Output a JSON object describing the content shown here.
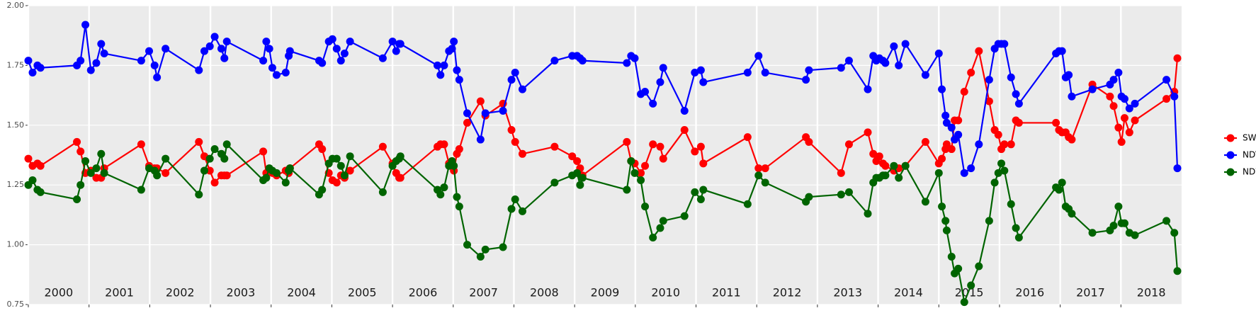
{
  "chart_data": {
    "type": "line",
    "x": [
      2000.0,
      2000.07,
      2000.15,
      2000.2,
      2000.8,
      2000.86,
      2000.94,
      2001.03,
      2001.12,
      2001.2,
      2001.25,
      2001.86,
      2001.99,
      2002.08,
      2002.12,
      2002.26,
      2002.81,
      2002.9,
      2002.99,
      2003.07,
      2003.18,
      2003.23,
      2003.27,
      2003.87,
      2003.92,
      2003.97,
      2004.02,
      2004.09,
      2004.24,
      2004.29,
      2004.31,
      2004.79,
      2004.84,
      2004.95,
      2005.01,
      2005.08,
      2005.15,
      2005.21,
      2005.3,
      2005.84,
      2006.0,
      2006.06,
      2006.11,
      2006.13,
      2006.74,
      2006.79,
      2006.85,
      2006.93,
      2006.98,
      2007.01,
      2007.06,
      2007.1,
      2007.23,
      2007.45,
      2007.53,
      2007.82,
      2007.96,
      2008.02,
      2008.14,
      2008.67,
      2008.96,
      2009.04,
      2009.09,
      2009.13,
      2009.86,
      2009.93,
      2009.99,
      2010.09,
      2010.16,
      2010.29,
      2010.41,
      2010.46,
      2010.81,
      2010.98,
      2011.08,
      2011.12,
      2011.85,
      2012.03,
      2012.14,
      2012.81,
      2012.86,
      2013.39,
      2013.52,
      2013.83,
      2013.92,
      2013.97,
      2014.02,
      2014.08,
      2014.12,
      2014.26,
      2014.34,
      2014.45,
      2014.78,
      2015.0,
      2015.05,
      2015.11,
      2015.13,
      2015.21,
      2015.26,
      2015.32,
      2015.42,
      2015.53,
      2015.66,
      2015.83,
      2015.92,
      2015.98,
      2016.03,
      2016.08,
      2016.19,
      2016.27,
      2016.32,
      2016.93,
      2016.98,
      2017.03,
      2017.09,
      2017.14,
      2017.19,
      2017.53,
      2017.82,
      2017.88,
      2017.96,
      2018.01,
      2018.06,
      2018.14,
      2018.23,
      2018.75,
      2018.88,
      2018.93
    ],
    "series": [
      {
        "name": "SWIR",
        "color": "#ff0000",
        "values": [
          1.36,
          1.33,
          1.34,
          1.33,
          1.43,
          1.39,
          1.3,
          1.31,
          1.28,
          1.28,
          1.32,
          1.42,
          1.33,
          1.32,
          1.32,
          1.3,
          1.43,
          1.37,
          1.31,
          1.26,
          1.29,
          1.29,
          1.29,
          1.39,
          1.3,
          1.31,
          1.3,
          1.29,
          1.31,
          1.3,
          1.32,
          1.42,
          1.4,
          1.3,
          1.27,
          1.26,
          1.29,
          1.28,
          1.31,
          1.41,
          1.34,
          1.3,
          1.28,
          1.28,
          1.41,
          1.42,
          1.42,
          1.34,
          1.35,
          1.31,
          1.38,
          1.4,
          1.51,
          1.6,
          1.54,
          1.59,
          1.48,
          1.43,
          1.38,
          1.41,
          1.37,
          1.35,
          1.32,
          1.29,
          1.43,
          1.35,
          1.34,
          1.3,
          1.33,
          1.42,
          1.41,
          1.36,
          1.48,
          1.39,
          1.41,
          1.34,
          1.45,
          1.32,
          1.32,
          1.45,
          1.43,
          1.3,
          1.42,
          1.47,
          1.38,
          1.35,
          1.37,
          1.34,
          1.33,
          1.31,
          1.32,
          1.33,
          1.43,
          1.34,
          1.36,
          1.4,
          1.42,
          1.4,
          1.52,
          1.52,
          1.64,
          1.72,
          1.81,
          1.6,
          1.48,
          1.46,
          1.4,
          1.42,
          1.42,
          1.52,
          1.51,
          1.51,
          1.48,
          1.47,
          1.47,
          1.45,
          1.44,
          1.67,
          1.62,
          1.58,
          1.49,
          1.43,
          1.53,
          1.47,
          1.52,
          1.61,
          1.64,
          1.78
        ]
      },
      {
        "name": "NDVI",
        "color": "#0000ff",
        "values": [
          1.77,
          1.72,
          1.75,
          1.74,
          1.75,
          1.77,
          1.92,
          1.73,
          1.76,
          1.84,
          1.8,
          1.77,
          1.81,
          1.75,
          1.7,
          1.82,
          1.73,
          1.81,
          1.83,
          1.87,
          1.82,
          1.78,
          1.85,
          1.77,
          1.85,
          1.82,
          1.74,
          1.71,
          1.72,
          1.79,
          1.81,
          1.77,
          1.76,
          1.85,
          1.86,
          1.82,
          1.77,
          1.8,
          1.85,
          1.78,
          1.85,
          1.81,
          1.84,
          1.84,
          1.75,
          1.71,
          1.75,
          1.81,
          1.82,
          1.85,
          1.73,
          1.69,
          1.55,
          1.44,
          1.55,
          1.56,
          1.69,
          1.72,
          1.65,
          1.77,
          1.79,
          1.79,
          1.78,
          1.77,
          1.76,
          1.79,
          1.78,
          1.63,
          1.64,
          1.59,
          1.68,
          1.74,
          1.56,
          1.72,
          1.73,
          1.68,
          1.72,
          1.79,
          1.72,
          1.69,
          1.73,
          1.74,
          1.77,
          1.65,
          1.79,
          1.77,
          1.78,
          1.77,
          1.76,
          1.83,
          1.75,
          1.84,
          1.71,
          1.8,
          1.65,
          1.54,
          1.51,
          1.49,
          1.44,
          1.46,
          1.3,
          1.32,
          1.42,
          1.69,
          1.82,
          1.84,
          1.84,
          1.84,
          1.7,
          1.63,
          1.59,
          1.8,
          1.81,
          1.81,
          1.7,
          1.71,
          1.62,
          1.65,
          1.67,
          1.69,
          1.72,
          1.62,
          1.61,
          1.57,
          1.59,
          1.69,
          1.62,
          1.32
        ]
      },
      {
        "name": "NDWI",
        "color": "#006400",
        "values": [
          1.25,
          1.27,
          1.23,
          1.22,
          1.19,
          1.25,
          1.35,
          1.3,
          1.32,
          1.38,
          1.3,
          1.23,
          1.32,
          1.31,
          1.29,
          1.36,
          1.21,
          1.31,
          1.36,
          1.4,
          1.38,
          1.36,
          1.42,
          1.27,
          1.28,
          1.32,
          1.31,
          1.3,
          1.26,
          1.31,
          1.32,
          1.21,
          1.23,
          1.34,
          1.36,
          1.36,
          1.33,
          1.29,
          1.37,
          1.22,
          1.33,
          1.35,
          1.36,
          1.37,
          1.23,
          1.21,
          1.24,
          1.33,
          1.35,
          1.33,
          1.2,
          1.16,
          1.0,
          0.95,
          0.98,
          0.99,
          1.15,
          1.19,
          1.14,
          1.26,
          1.29,
          1.3,
          1.25,
          1.28,
          1.23,
          1.35,
          1.3,
          1.27,
          1.16,
          1.03,
          1.07,
          1.1,
          1.12,
          1.22,
          1.19,
          1.23,
          1.17,
          1.29,
          1.26,
          1.18,
          1.2,
          1.21,
          1.22,
          1.13,
          1.26,
          1.28,
          1.28,
          1.29,
          1.29,
          1.33,
          1.28,
          1.33,
          1.18,
          1.3,
          1.16,
          1.1,
          1.06,
          0.95,
          0.88,
          0.9,
          0.76,
          0.83,
          0.91,
          1.1,
          1.26,
          1.3,
          1.34,
          1.31,
          1.17,
          1.07,
          1.03,
          1.24,
          1.23,
          1.26,
          1.16,
          1.15,
          1.13,
          1.05,
          1.06,
          1.08,
          1.16,
          1.09,
          1.09,
          1.05,
          1.04,
          1.1,
          1.05,
          0.89
        ]
      }
    ],
    "xlim": [
      2000,
      2019
    ],
    "xticks": [
      2000,
      2001,
      2002,
      2003,
      2004,
      2005,
      2006,
      2007,
      2008,
      2009,
      2010,
      2011,
      2012,
      2013,
      2014,
      2015,
      2016,
      2017,
      2018
    ],
    "ylim": [
      0.75,
      2.0
    ],
    "yticks": [
      {
        "value": 0.75,
        "label": "0.75"
      },
      {
        "value": 1.0,
        "label": "1.00"
      },
      {
        "value": 1.25,
        "label": "1.25"
      },
      {
        "value": 1.5,
        "label": "1.50"
      },
      {
        "value": 1.75,
        "label": "1.75"
      },
      {
        "value": 2.0,
        "label": "2.00"
      }
    ],
    "grid": true,
    "legend": "right"
  }
}
